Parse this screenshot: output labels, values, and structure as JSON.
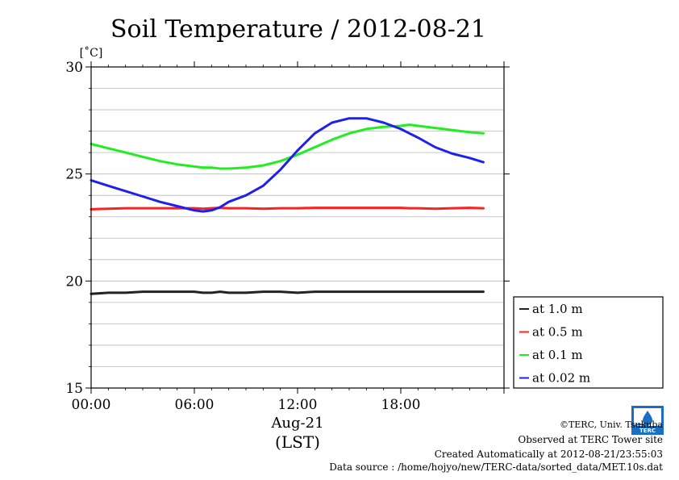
{
  "footer": {
    "copyright": "©TERC, Univ. Tsukuba",
    "observed": "Observed at TERC Tower site",
    "created": "Created Automatically at 2012-08-21/23:55:03",
    "source": "Data source : /home/hojyo/new/TERC-data/sorted_data/MET.10s.dat",
    "logo_text": "TERC"
  },
  "chart_data": {
    "type": "line",
    "title": "Soil Temperature / 2012-08-21",
    "ylabel": "[˚C]",
    "xlabel": "Aug-21",
    "xlabel2": "(LST)",
    "ylim": [
      15,
      30
    ],
    "xlim": [
      0,
      24
    ],
    "yticks": [
      15,
      20,
      25,
      30
    ],
    "ytick_labels": [
      "15",
      "20",
      "25",
      "30"
    ],
    "xticks": [
      0,
      6,
      12,
      18
    ],
    "xtick_labels": [
      "00:00",
      "06:00",
      "12:00",
      "18:00"
    ],
    "grid": "horizontal",
    "legend_position": "right",
    "x": [
      0,
      1,
      2,
      3,
      4,
      5,
      6,
      6.5,
      7,
      7.5,
      8,
      9,
      10,
      11,
      12,
      13,
      14,
      15,
      16,
      17,
      18,
      18.5,
      19,
      20,
      21,
      22,
      22.8
    ],
    "series": [
      {
        "name": "at 1.0 m",
        "color": "#222222",
        "values": [
          19.4,
          19.45,
          19.45,
          19.5,
          19.5,
          19.5,
          19.5,
          19.45,
          19.45,
          19.5,
          19.45,
          19.45,
          19.5,
          19.5,
          19.45,
          19.5,
          19.5,
          19.5,
          19.5,
          19.5,
          19.5,
          19.5,
          19.5,
          19.5,
          19.5,
          19.5,
          19.5
        ]
      },
      {
        "name": "at 0.5 m",
        "color": "#ff2020",
        "values": [
          23.35,
          23.38,
          23.4,
          23.4,
          23.4,
          23.4,
          23.4,
          23.38,
          23.4,
          23.42,
          23.4,
          23.4,
          23.38,
          23.4,
          23.4,
          23.42,
          23.42,
          23.42,
          23.42,
          23.42,
          23.42,
          23.4,
          23.4,
          23.38,
          23.4,
          23.42,
          23.4
        ]
      },
      {
        "name": "at 0.1 m",
        "color": "#20ee20",
        "values": [
          26.4,
          26.2,
          26.0,
          25.8,
          25.6,
          25.45,
          25.35,
          25.3,
          25.3,
          25.25,
          25.25,
          25.3,
          25.4,
          25.6,
          25.9,
          26.25,
          26.6,
          26.9,
          27.1,
          27.2,
          27.25,
          27.3,
          27.25,
          27.15,
          27.05,
          26.95,
          26.9
        ]
      },
      {
        "name": "at 0.02 m",
        "color": "#2020ee",
        "values": [
          24.7,
          24.45,
          24.2,
          23.95,
          23.7,
          23.5,
          23.3,
          23.25,
          23.3,
          23.45,
          23.7,
          24.0,
          24.45,
          25.2,
          26.1,
          26.9,
          27.4,
          27.6,
          27.6,
          27.4,
          27.1,
          26.9,
          26.7,
          26.25,
          25.95,
          25.75,
          25.55
        ]
      }
    ]
  }
}
